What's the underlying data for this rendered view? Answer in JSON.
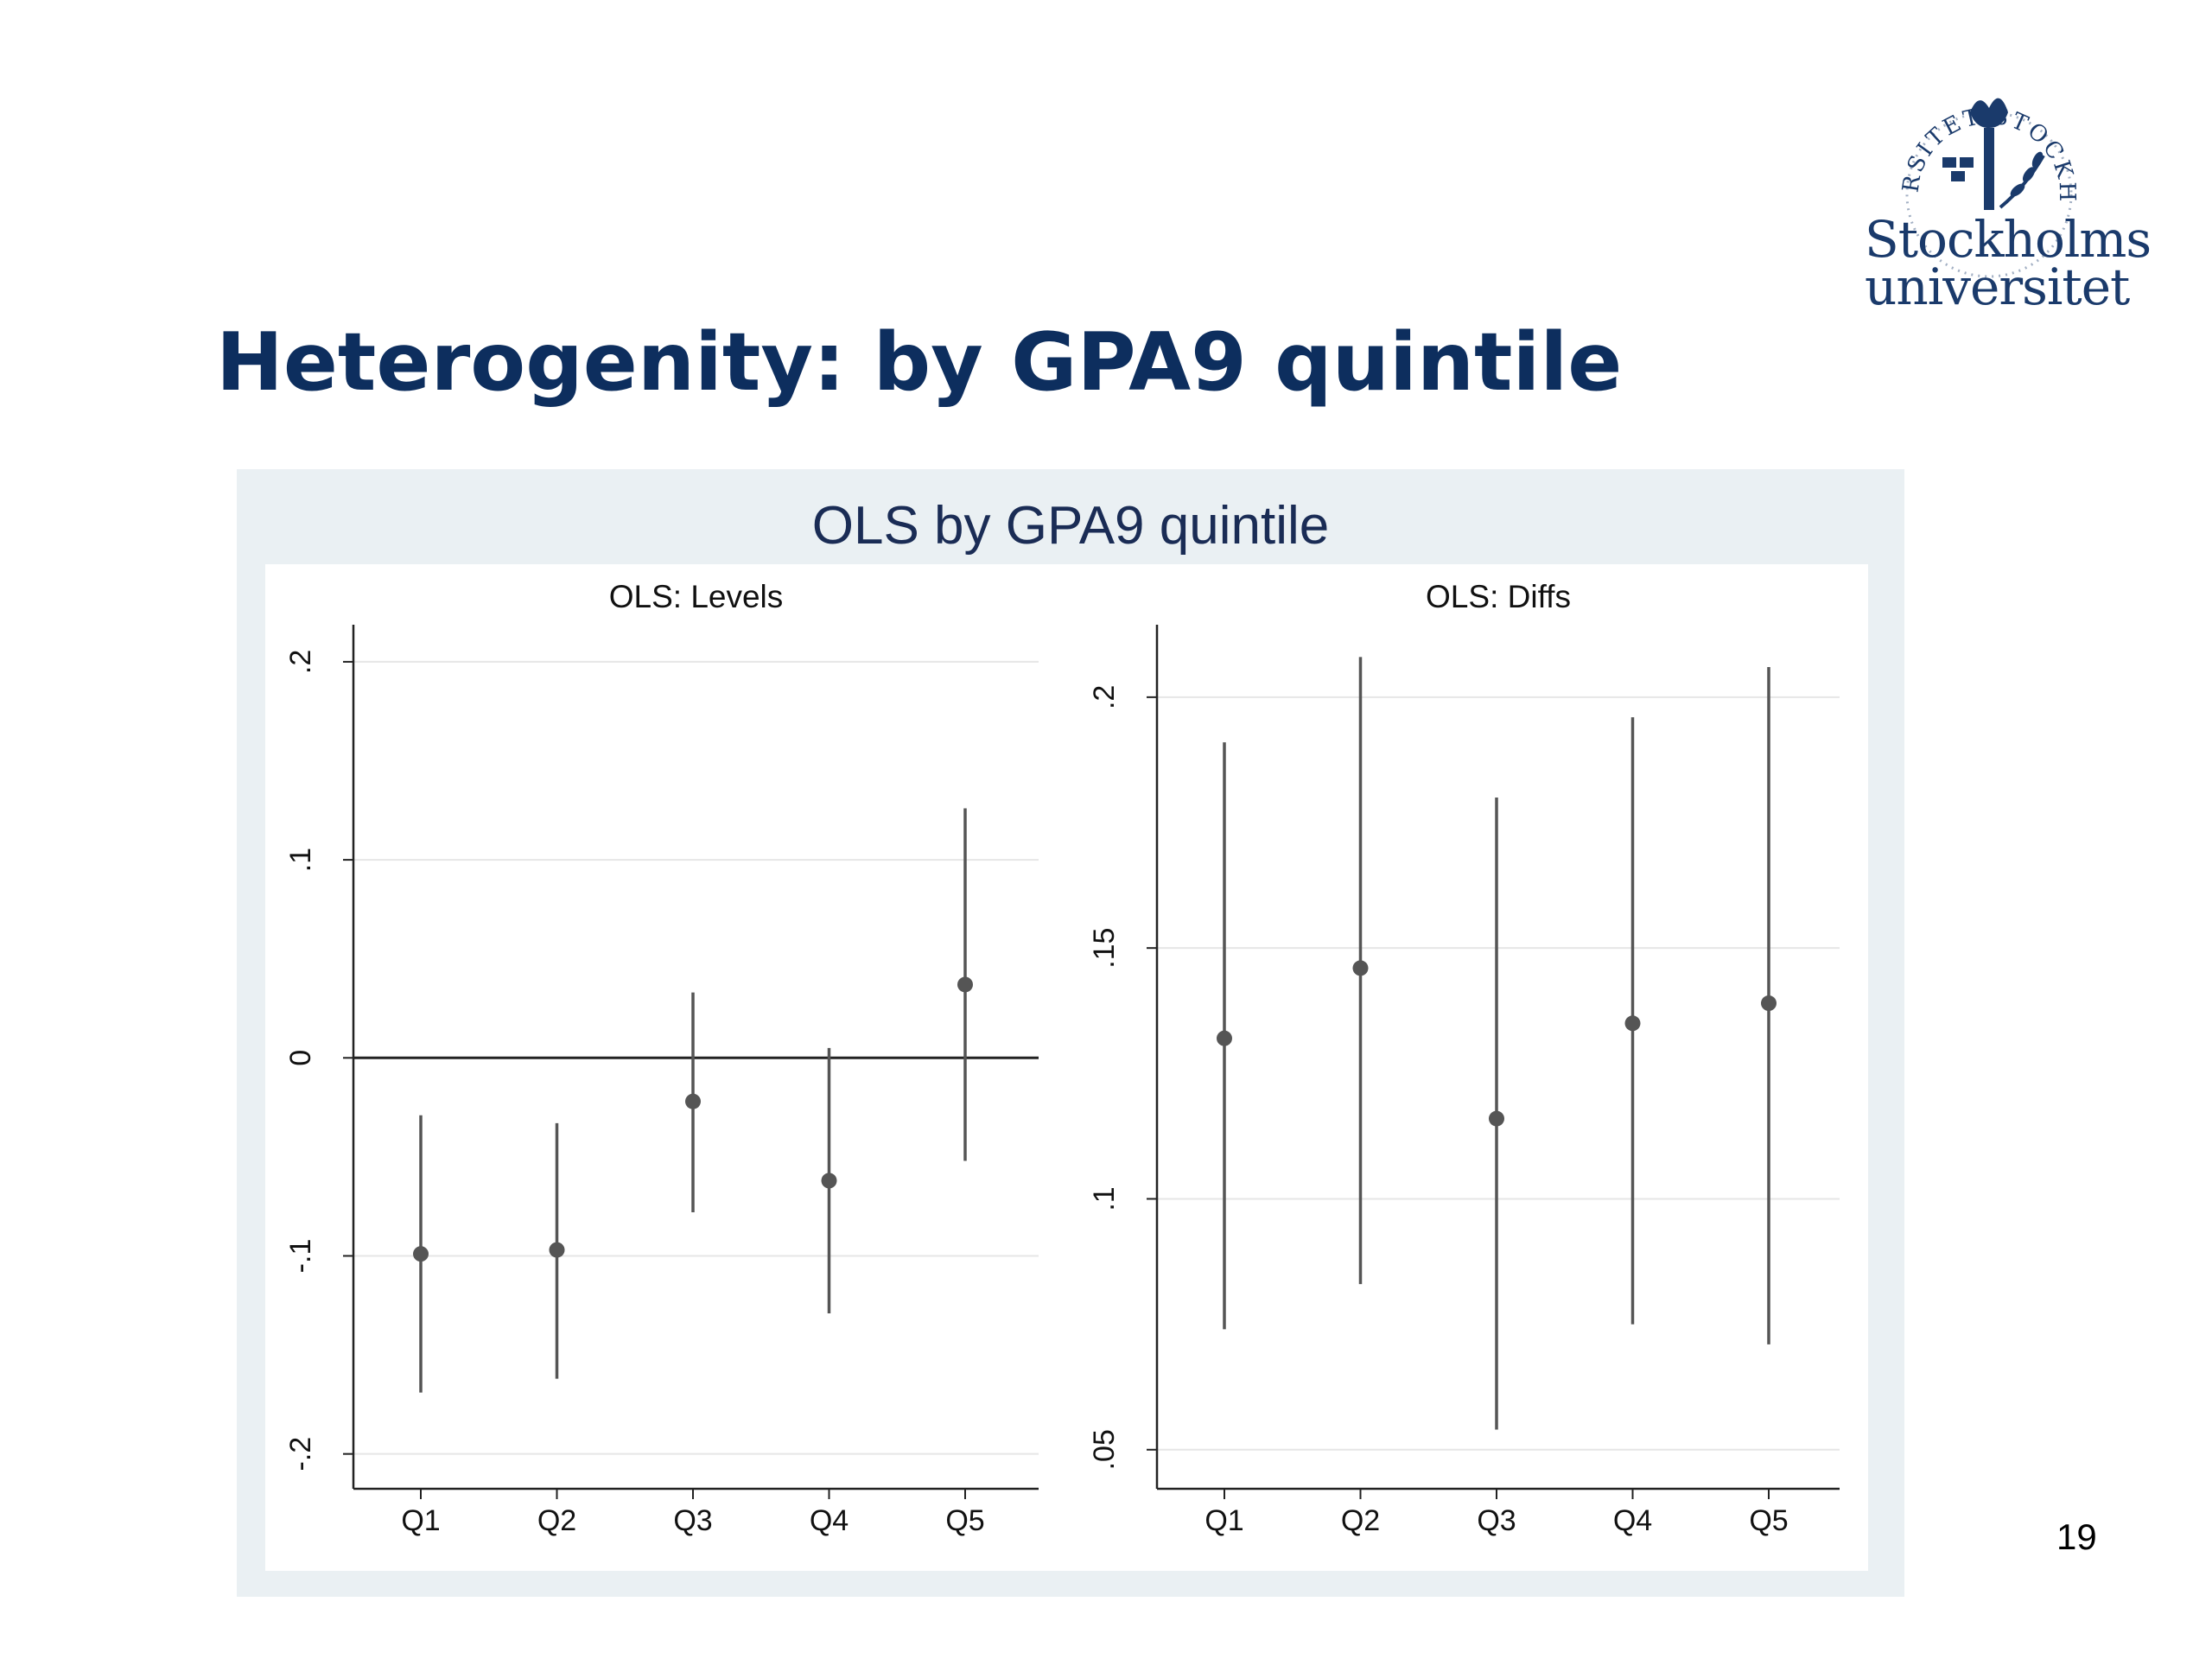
{
  "slide": {
    "title": "Heterogenity: by GPA9 quintile",
    "page_number": "19"
  },
  "logo": {
    "name_line1": "Stockholms",
    "name_line2": "universitet",
    "seal_text": "UNIVERSITET STOCKHOLMS",
    "color": "#1a3a6b"
  },
  "colors": {
    "title": "#0d2e5e",
    "frame_bg": "#eaf0f3",
    "marker": "#555555",
    "grid": "#e6e6e6"
  },
  "chart_data": {
    "title": "OLS by GPA9 quintile",
    "panels": [
      {
        "type": "scatter",
        "subtitle": "OLS: Levels",
        "categories": [
          "Q1",
          "Q2",
          "Q3",
          "Q4",
          "Q5"
        ],
        "estimates": [
          -0.099,
          -0.097,
          -0.022,
          -0.062,
          0.037
        ],
        "ci_low": [
          -0.169,
          -0.162,
          -0.078,
          -0.129,
          -0.052
        ],
        "ci_high": [
          -0.029,
          -0.033,
          0.033,
          0.005,
          0.126
        ],
        "yticks": [
          "-.2",
          "-.1",
          "0",
          ".1",
          ".2"
        ],
        "ytick_values": [
          -0.2,
          -0.1,
          0,
          0.1,
          0.2
        ],
        "ylim": [
          -0.208,
          0.21
        ],
        "reference_line": 0,
        "grid": true
      },
      {
        "type": "scatter",
        "subtitle": "OLS: Diffs",
        "categories": [
          "Q1",
          "Q2",
          "Q3",
          "Q4",
          "Q5"
        ],
        "estimates": [
          0.132,
          0.146,
          0.116,
          0.135,
          0.139
        ],
        "ci_low": [
          0.074,
          0.083,
          0.054,
          0.075,
          0.071
        ],
        "ci_high": [
          0.191,
          0.208,
          0.18,
          0.196,
          0.206
        ],
        "yticks": [
          ".05",
          ".1",
          ".15",
          ".2"
        ],
        "ytick_values": [
          0.05,
          0.1,
          0.15,
          0.2
        ],
        "ylim": [
          0.046,
          0.211
        ],
        "grid": true
      }
    ]
  }
}
